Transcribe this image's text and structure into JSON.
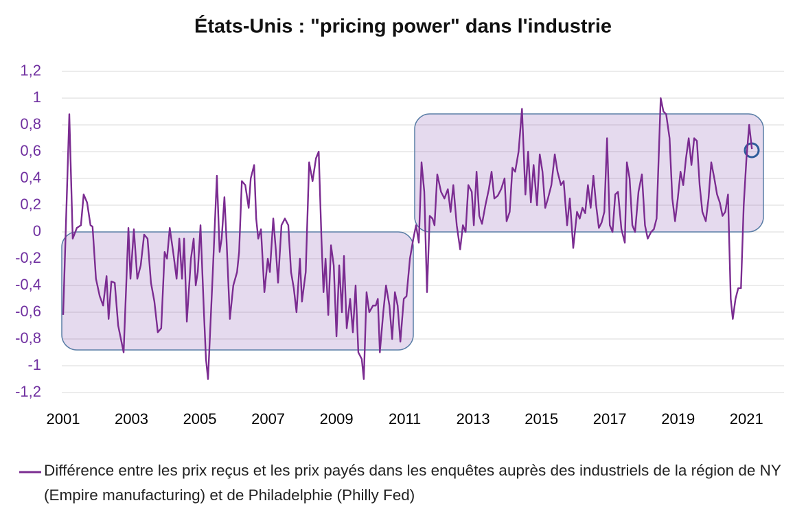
{
  "chart_data": {
    "type": "line",
    "title": "États-Unis : \"pricing power\" dans l'industrie",
    "xlim": [
      2001,
      2022.1
    ],
    "xticks": [
      2001,
      2003,
      2005,
      2007,
      2009,
      2011,
      2013,
      2015,
      2017,
      2019,
      2021
    ],
    "ylim": [
      -1.2,
      1.2
    ],
    "yticks": [
      {
        "value": -1.2,
        "label": "-1,2"
      },
      -1,
      {
        "value": -0.8,
        "label": "-0,8"
      },
      {
        "value": -0.6,
        "label": "-0,6"
      },
      {
        "value": -0.4,
        "label": "-0,4"
      },
      {
        "value": -0.2,
        "label": "-0,2"
      },
      0,
      {
        "value": 0.2,
        "label": "0,2"
      },
      {
        "value": 0.4,
        "label": "0,4"
      },
      {
        "value": 0.6,
        "label": "0,6"
      },
      {
        "value": 0.8,
        "label": "0,8"
      },
      1,
      {
        "value": 1.2,
        "label": "1,2"
      }
    ],
    "grid": true,
    "legend": "bottom",
    "x": [
      2001.0,
      2001.18,
      2001.28,
      2001.4,
      2001.52,
      2001.6,
      2001.7,
      2001.8,
      2001.86,
      2001.96,
      2002.07,
      2002.17,
      2002.27,
      2002.33,
      2002.41,
      2002.51,
      2002.61,
      2002.77,
      2002.91,
      2002.97,
      2003.07,
      2003.17,
      2003.27,
      2003.37,
      2003.47,
      2003.57,
      2003.67,
      2003.77,
      2003.87,
      2003.97,
      2004.04,
      2004.12,
      2004.22,
      2004.32,
      2004.4,
      2004.48,
      2004.54,
      2004.62,
      2004.74,
      2004.82,
      2004.88,
      2004.94,
      2005.02,
      2005.12,
      2005.18,
      2005.24,
      2005.38,
      2005.5,
      2005.58,
      2005.64,
      2005.72,
      2005.78,
      2005.88,
      2005.98,
      2006.09,
      2006.15,
      2006.23,
      2006.33,
      2006.43,
      2006.49,
      2006.59,
      2006.65,
      2006.71,
      2006.79,
      2006.89,
      2006.99,
      2007.05,
      2007.15,
      2007.23,
      2007.29,
      2007.39,
      2007.49,
      2007.59,
      2007.67,
      2007.75,
      2007.83,
      2007.93,
      2007.99,
      2008.1,
      2008.2,
      2008.3,
      2008.4,
      2008.48,
      2008.56,
      2008.62,
      2008.68,
      2008.76,
      2008.84,
      2008.92,
      2009.0,
      2009.08,
      2009.16,
      2009.22,
      2009.3,
      2009.4,
      2009.48,
      2009.56,
      2009.64,
      2009.74,
      2009.8,
      2009.88,
      2009.96,
      2010.07,
      2010.15,
      2010.21,
      2010.27,
      2010.37,
      2010.45,
      2010.55,
      2010.63,
      2010.71,
      2010.79,
      2010.87,
      2010.97,
      2011.05,
      2011.15,
      2011.25,
      2011.33,
      2011.41,
      2011.49,
      2011.57,
      2011.65,
      2011.73,
      2011.81,
      2011.87,
      2011.95,
      2012.06,
      2012.16,
      2012.26,
      2012.34,
      2012.42,
      2012.52,
      2012.62,
      2012.7,
      2012.78,
      2012.86,
      2012.96,
      2013.02,
      2013.1,
      2013.18,
      2013.26,
      2013.36,
      2013.46,
      2013.54,
      2013.62,
      2013.72,
      2013.82,
      2013.92,
      2013.98,
      2014.07,
      2014.15,
      2014.23,
      2014.33,
      2014.43,
      2014.53,
      2014.61,
      2014.69,
      2014.77,
      2014.87,
      2014.95,
      2015.03,
      2015.11,
      2015.19,
      2015.29,
      2015.39,
      2015.47,
      2015.57,
      2015.65,
      2015.75,
      2015.83,
      2015.93,
      2016.04,
      2016.12,
      2016.2,
      2016.28,
      2016.36,
      2016.44,
      2016.52,
      2016.6,
      2016.68,
      2016.76,
      2016.84,
      2016.92,
      2017.0,
      2017.08,
      2017.16,
      2017.24,
      2017.34,
      2017.44,
      2017.5,
      2017.58,
      2017.66,
      2017.74,
      2017.84,
      2017.94,
      2018.03,
      2018.11,
      2018.21,
      2018.29,
      2018.37,
      2018.49,
      2018.57,
      2018.65,
      2018.75,
      2018.83,
      2018.91,
      2018.99,
      2019.07,
      2019.15,
      2019.23,
      2019.31,
      2019.39,
      2019.47,
      2019.55,
      2019.63,
      2019.71,
      2019.81,
      2019.89,
      2019.97,
      2020.06,
      2020.14,
      2020.22,
      2020.3,
      2020.38,
      2020.46,
      2020.54,
      2020.6,
      2020.68,
      2020.76,
      2020.84,
      2020.92,
      2021.0,
      2021.08,
      2021.16
    ],
    "series": [
      {
        "name": "Différence entre les prix reçus et les prix payés dans les enquêtes auprès des industriels de la région de NY (Empire manufacturing) et de Philadelphie (Philly Fed)",
        "color": "#7b2c91",
        "values": [
          -0.62,
          0.88,
          -0.05,
          0.03,
          0.05,
          0.28,
          0.22,
          0.05,
          0.04,
          -0.35,
          -0.48,
          -0.55,
          -0.33,
          -0.65,
          -0.37,
          -0.38,
          -0.7,
          -0.9,
          0.03,
          -0.35,
          0.02,
          -0.35,
          -0.25,
          -0.02,
          -0.05,
          -0.38,
          -0.52,
          -0.75,
          -0.72,
          -0.15,
          -0.2,
          0.03,
          -0.15,
          -0.35,
          -0.05,
          -0.35,
          -0.05,
          -0.67,
          -0.2,
          -0.05,
          -0.4,
          -0.3,
          0.05,
          -0.6,
          -0.95,
          -1.1,
          -0.3,
          0.42,
          -0.15,
          -0.05,
          0.26,
          -0.05,
          -0.65,
          -0.4,
          -0.3,
          -0.15,
          0.38,
          0.35,
          0.18,
          0.4,
          0.5,
          0.1,
          -0.05,
          0.02,
          -0.45,
          -0.2,
          -0.3,
          0.1,
          -0.15,
          -0.38,
          0.05,
          0.1,
          0.05,
          -0.3,
          -0.42,
          -0.6,
          -0.2,
          -0.52,
          -0.3,
          0.52,
          0.38,
          0.55,
          0.6,
          -0.05,
          -0.45,
          -0.2,
          -0.62,
          -0.1,
          -0.25,
          -0.78,
          -0.25,
          -0.6,
          -0.18,
          -0.72,
          -0.5,
          -0.75,
          -0.4,
          -0.9,
          -0.95,
          -1.1,
          -0.45,
          -0.6,
          -0.55,
          -0.55,
          -0.5,
          -0.9,
          -0.6,
          -0.4,
          -0.55,
          -0.8,
          -0.45,
          -0.55,
          -0.82,
          -0.5,
          -0.48,
          -0.2,
          -0.05,
          0.05,
          -0.08,
          0.52,
          0.3,
          -0.45,
          0.12,
          0.1,
          0.05,
          0.43,
          0.3,
          0.25,
          0.32,
          0.15,
          0.35,
          0.05,
          -0.13,
          0.05,
          0.0,
          0.35,
          0.3,
          0.05,
          0.45,
          0.12,
          0.06,
          0.2,
          0.32,
          0.45,
          0.25,
          0.27,
          0.32,
          0.4,
          0.08,
          0.15,
          0.48,
          0.45,
          0.6,
          0.92,
          0.28,
          0.6,
          0.22,
          0.5,
          0.2,
          0.58,
          0.45,
          0.18,
          0.25,
          0.35,
          0.58,
          0.45,
          0.35,
          0.38,
          0.05,
          0.25,
          -0.12,
          0.15,
          0.1,
          0.18,
          0.14,
          0.35,
          0.18,
          0.42,
          0.2,
          0.03,
          0.07,
          0.15,
          0.7,
          0.05,
          0.0,
          0.28,
          0.3,
          0.02,
          -0.08,
          0.52,
          0.4,
          0.05,
          0.0,
          0.3,
          0.43,
          0.05,
          -0.05,
          0.0,
          0.02,
          0.1,
          1.0,
          0.9,
          0.88,
          0.7,
          0.25,
          0.08,
          0.25,
          0.45,
          0.35,
          0.55,
          0.7,
          0.5,
          0.7,
          0.68,
          0.35,
          0.15,
          0.08,
          0.25,
          0.52,
          0.4,
          0.28,
          0.22,
          0.12,
          0.15,
          0.28,
          -0.5,
          -0.65,
          -0.5,
          -0.42,
          -0.42,
          0.2,
          0.55,
          0.8,
          0.62
        ]
      }
    ]
  }
}
